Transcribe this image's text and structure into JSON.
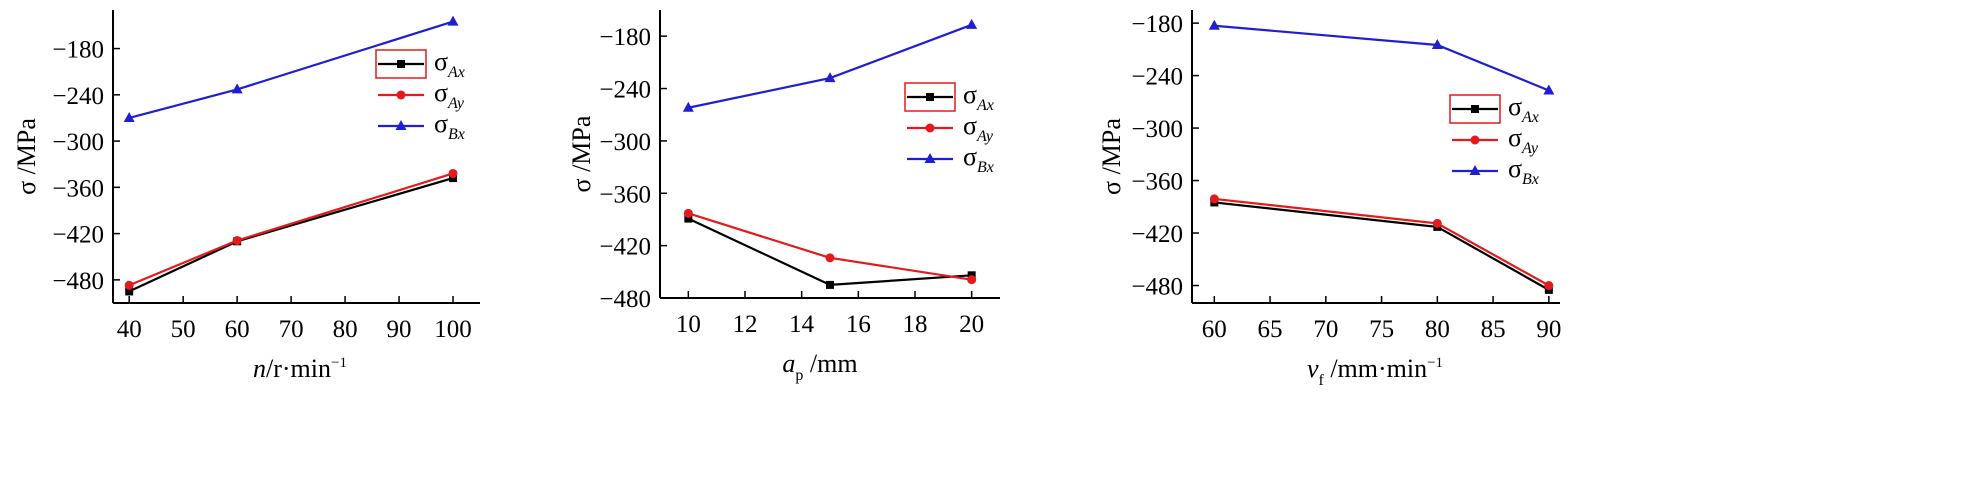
{
  "colors": {
    "Ax": "#000000",
    "Ay": "#e41a1c",
    "Bx": "#1f1fd1"
  },
  "chart_data": [
    {
      "type": "line",
      "xlabel": {
        "var": "n",
        "unit": "/r·min",
        "sup": "−1"
      },
      "ylabel": "σ /MPa",
      "x": [
        40,
        60,
        100
      ],
      "xticks": [
        "40",
        "50",
        "60",
        "70",
        "80",
        "90",
        "100"
      ],
      "xlim": [
        37,
        105
      ],
      "yticks": [
        "−180",
        "−240",
        "−300",
        "−360",
        "−420",
        "−480"
      ],
      "ylim": [
        -510,
        -130
      ],
      "series": [
        {
          "key": "Ax",
          "name": "σ",
          "sub": "Ax",
          "marker": "square",
          "values": [
            -495,
            -430,
            -348
          ]
        },
        {
          "key": "Ay",
          "name": "σ",
          "sub": "Ay",
          "marker": "circle",
          "values": [
            -487,
            -429,
            -342
          ]
        },
        {
          "key": "Bx",
          "name": "σ",
          "sub": "Bx",
          "marker": "triangle",
          "values": [
            -270,
            -233,
            -145
          ]
        }
      ]
    },
    {
      "type": "line",
      "xlabel": {
        "var": "a",
        "varsub": "p",
        "unit": "/mm"
      },
      "ylabel": "σ /MPa",
      "x": [
        10,
        15,
        20
      ],
      "xticks": [
        "10",
        "12",
        "14",
        "16",
        "18",
        "20"
      ],
      "xlim": [
        9,
        21
      ],
      "yticks": [
        "−180",
        "−240",
        "−300",
        "−360",
        "−420",
        "−480"
      ],
      "ylim": [
        -480,
        -150
      ],
      "series": [
        {
          "key": "Ax",
          "name": "σ",
          "sub": "Ax",
          "marker": "square",
          "values": [
            -389,
            -465,
            -454
          ]
        },
        {
          "key": "Ay",
          "name": "σ",
          "sub": "Ay",
          "marker": "circle",
          "values": [
            -383,
            -434,
            -459
          ]
        },
        {
          "key": "Bx",
          "name": "σ",
          "sub": "Bx",
          "marker": "triangle",
          "values": [
            -262,
            -228,
            -167
          ]
        }
      ]
    },
    {
      "type": "line",
      "xlabel": {
        "var": "v",
        "varsub": "f",
        "unit": "/mm·min",
        "sup": "−1"
      },
      "ylabel": "σ /MPa",
      "x": [
        60,
        80,
        90
      ],
      "xticks": [
        "60",
        "65",
        "70",
        "75",
        "80",
        "85",
        "90"
      ],
      "xlim": [
        58,
        91
      ],
      "yticks": [
        "−180",
        "−240",
        "−300",
        "−360",
        "−420",
        "−480"
      ],
      "ylim": [
        -500,
        -165
      ],
      "series": [
        {
          "key": "Ax",
          "name": "σ",
          "sub": "Ax",
          "marker": "square",
          "values": [
            -385,
            -413,
            -485
          ]
        },
        {
          "key": "Ay",
          "name": "σ",
          "sub": "Ay",
          "marker": "circle",
          "values": [
            -381,
            -409,
            -480
          ]
        },
        {
          "key": "Bx",
          "name": "σ",
          "sub": "Bx",
          "marker": "triangle",
          "values": [
            -183,
            -205,
            -257
          ]
        }
      ]
    }
  ]
}
